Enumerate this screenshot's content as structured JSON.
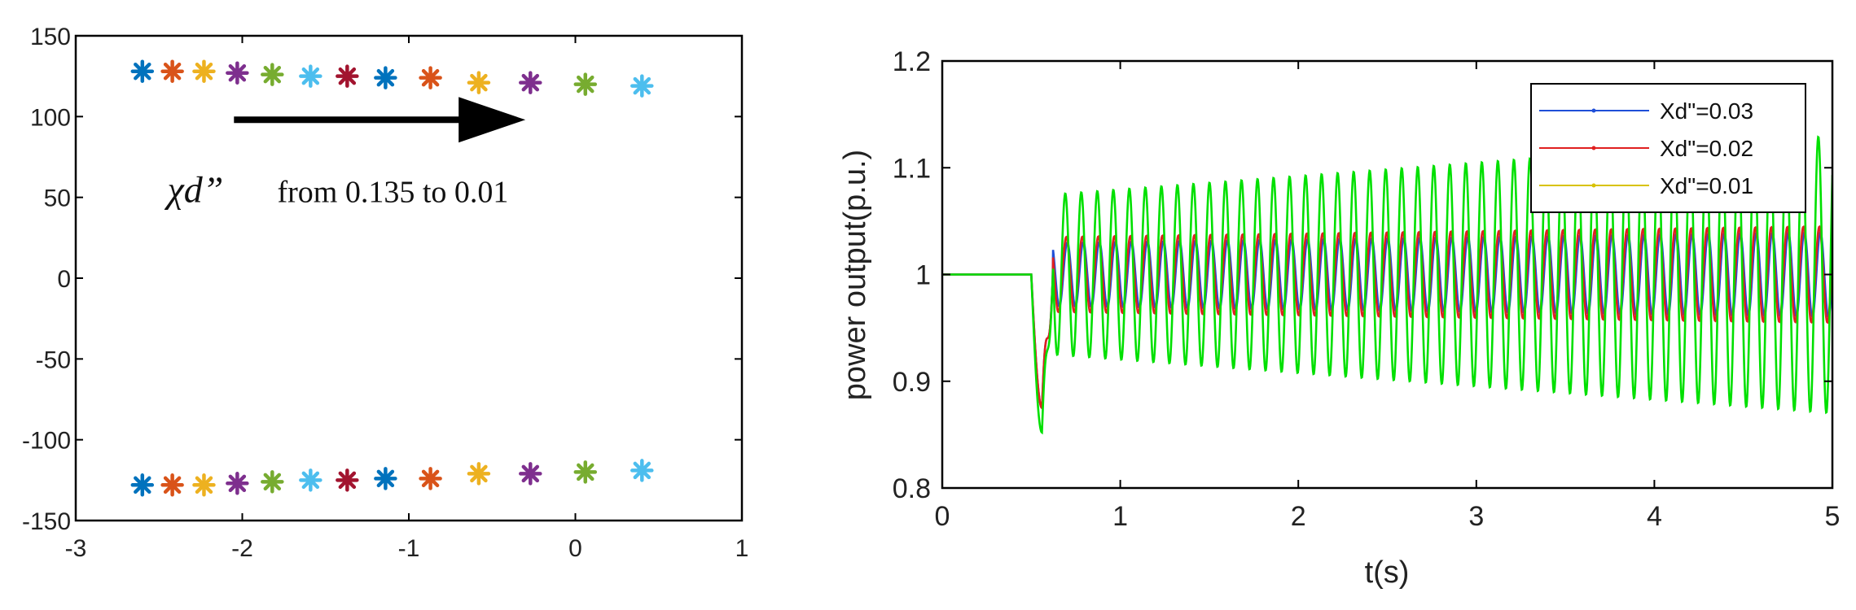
{
  "chart_data": [
    {
      "type": "scatter",
      "title": "",
      "xlabel": "",
      "ylabel": "",
      "xlim": [
        -3,
        1
      ],
      "ylim": [
        -150,
        150
      ],
      "xticks": [
        "-3",
        "-2",
        "-1",
        "0",
        "1"
      ],
      "yticks": [
        "150",
        "100",
        "50",
        "0",
        "-50",
        "-100",
        "-150"
      ],
      "marker": "asterisk",
      "grid": false,
      "series": [
        {
          "color": "#0072BD",
          "points": [
            [
              -2.6,
              128
            ],
            [
              -2.6,
              -128
            ],
            [
              -1.14,
              124
            ],
            [
              -1.14,
              -124
            ]
          ]
        },
        {
          "color": "#D95319",
          "points": [
            [
              -2.42,
              128
            ],
            [
              -2.42,
              -128
            ],
            [
              -0.87,
              124
            ],
            [
              -0.87,
              -124
            ]
          ]
        },
        {
          "color": "#EDB120",
          "points": [
            [
              -2.23,
              128
            ],
            [
              -2.23,
              -128
            ],
            [
              -0.58,
              121
            ],
            [
              -0.58,
              -121
            ]
          ]
        },
        {
          "color": "#7E2F8E",
          "points": [
            [
              -2.03,
              127
            ],
            [
              -2.03,
              -127
            ],
            [
              -0.27,
              121
            ],
            [
              -0.27,
              -121
            ]
          ]
        },
        {
          "color": "#77AC30",
          "points": [
            [
              -1.82,
              126
            ],
            [
              -1.82,
              -126
            ],
            [
              0.06,
              120
            ],
            [
              0.06,
              -120
            ]
          ]
        },
        {
          "color": "#4DBEEE",
          "points": [
            [
              -1.59,
              125
            ],
            [
              -1.59,
              -125
            ],
            [
              0.4,
              119
            ],
            [
              0.4,
              -119
            ]
          ]
        },
        {
          "color": "#A2142F",
          "points": [
            [
              -1.37,
              125
            ],
            [
              -1.37,
              -125
            ]
          ]
        }
      ],
      "annotations": [
        {
          "type": "arrow",
          "from": [
            -2.05,
            98
          ],
          "to": [
            -0.3,
            98
          ]
        },
        {
          "type": "text",
          "symbol": "χd”",
          "text": "from 0.135 to 0.01",
          "at": [
            -2.45,
            47
          ]
        }
      ]
    },
    {
      "type": "line",
      "title": "",
      "xlabel": "t(s)",
      "ylabel": "power output(p.u.)",
      "xlim": [
        0,
        5
      ],
      "ylim": [
        0.8,
        1.2
      ],
      "xticks": [
        "0",
        "1",
        "2",
        "3",
        "4",
        "5"
      ],
      "yticks": [
        "1.2",
        "1.1",
        "1",
        "0.9",
        "0.8"
      ],
      "grid": false,
      "legend_position": "top-right",
      "fault_time": 0.5,
      "series": [
        {
          "name": "Xd\"=0.03",
          "color": "#1f4fd8",
          "steady": 1.0,
          "dip_min": 0.875,
          "oscillation_amplitude_start": 0.03,
          "oscillation_amplitude_end": 0.04,
          "oscillation_period": 0.09
        },
        {
          "name": "Xd\"=0.02",
          "color": "#e02020",
          "steady": 1.0,
          "dip_min": 0.875,
          "oscillation_amplitude_start": 0.035,
          "oscillation_amplitude_end": 0.045,
          "oscillation_period": 0.09
        },
        {
          "name": "Xd\"=0.01",
          "color": "#00e000",
          "legend_color": "#d8c200",
          "steady": 1.0,
          "dip_min": 0.852,
          "mean_end": 1.0,
          "oscillation_amplitude_start": 0.075,
          "oscillation_amplitude_end": 0.13,
          "oscillation_period": 0.09
        }
      ]
    }
  ]
}
